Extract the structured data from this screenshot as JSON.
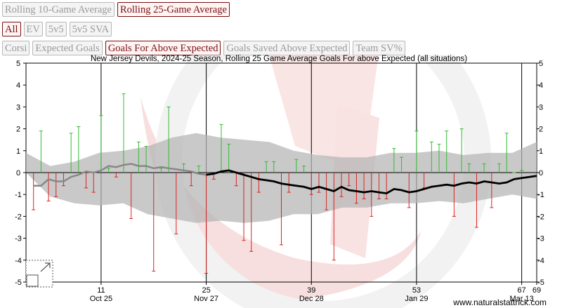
{
  "window_buttons": [
    {
      "label": "Rolling 10-Game Average",
      "active": false
    },
    {
      "label": "Rolling 25-Game Average",
      "active": true
    }
  ],
  "situation_buttons": [
    {
      "label": "All",
      "active": true
    },
    {
      "label": "EV",
      "active": false
    },
    {
      "label": "5v5",
      "active": false
    },
    {
      "label": "5v5 SVA",
      "active": false
    }
  ],
  "metric_buttons": [
    {
      "label": "Corsi",
      "active": false
    },
    {
      "label": "Expected Goals",
      "active": false
    },
    {
      "label": "Goals For Above Expected",
      "active": true
    },
    {
      "label": "Goals Saved Above Expected",
      "active": false
    },
    {
      "label": "Team SV%",
      "active": false
    }
  ],
  "watermark": "www.naturalstattrick.com",
  "colors": {
    "positive": "#33bb33",
    "negative": "#dd2222",
    "rolling_line": "#000000",
    "band": "#b4b4b4",
    "accent": "#7a1010"
  },
  "chart_data": {
    "type": "line",
    "title": "New Jersey Devils, 2024-25 Season, Rolling 25 Game Average Goals For above Expected (all situations)",
    "x_range": [
      1,
      69
    ],
    "ylim": [
      -5,
      5
    ],
    "y_ticks": [
      5,
      4,
      3,
      2,
      1,
      0,
      -1,
      -2,
      -3,
      -4,
      -5
    ],
    "x_ticks": [
      {
        "game": 11,
        "label": "11",
        "date": "Oct 25"
      },
      {
        "game": 25,
        "label": "25",
        "date": "Nov 27"
      },
      {
        "game": 39,
        "label": "39",
        "date": "Dec 28"
      },
      {
        "game": 53,
        "label": "53",
        "date": "Jan 29"
      },
      {
        "game": 67,
        "label": "67",
        "date": "Mar 13"
      },
      {
        "game": 69,
        "label": "69",
        "date": ""
      }
    ],
    "game_values": [
      -1.7,
      1.9,
      -1.3,
      -1.1,
      -0.6,
      1.8,
      2.1,
      -0.7,
      -0.9,
      2.6,
      0.2,
      -0.2,
      3.6,
      -2.1,
      1.4,
      1.2,
      -4.5,
      0.2,
      3.0,
      -2.8,
      0.4,
      -0.6,
      0.3,
      -4.6,
      -0.3,
      2.2,
      1.3,
      -0.6,
      -3.1,
      -3.6,
      -0.9,
      0.5,
      0.5,
      -3.3,
      -0.9,
      0.6,
      0.3,
      -1.0,
      -0.9,
      -1.7,
      -4.0,
      -1.1,
      -0.6,
      -1.4,
      -1.2,
      -2.0,
      -1.2,
      -1.2,
      1.1,
      0.7,
      -1.6,
      1.9,
      -0.7,
      1.4,
      1.3,
      1.9,
      -2.0,
      2.0,
      0.4,
      -2.5,
      0.4,
      -1.6,
      0.4,
      1.8,
      0.0,
      0.1
    ],
    "rolling_average": [
      -0.6,
      -0.6,
      -0.3,
      -0.4,
      -0.4,
      -0.2,
      -0.1,
      0.05,
      0.0,
      0.1,
      0.3,
      0.25,
      0.35,
      0.4,
      0.3,
      0.3,
      0.2,
      0.25,
      0.2,
      0.15,
      0.1,
      0.05,
      -0.05,
      -0.1,
      -0.05,
      0.05,
      0.1,
      0.0,
      -0.1,
      -0.2,
      -0.3,
      -0.35,
      -0.4,
      -0.5,
      -0.55,
      -0.6,
      -0.65,
      -0.75,
      -0.65,
      -0.75,
      -0.85,
      -0.65,
      -0.8,
      -0.85,
      -0.9,
      -0.85,
      -0.9,
      -0.95,
      -0.75,
      -0.8,
      -0.9,
      -0.85,
      -0.75,
      -0.65,
      -0.6,
      -0.55,
      -0.6,
      -0.5,
      -0.45,
      -0.5,
      -0.4,
      -0.45,
      -0.5,
      -0.45,
      -0.3,
      -0.25,
      -0.2,
      -0.15
    ],
    "rolling_start_game": 2,
    "band_upper": [
      0.9,
      0.3,
      0.5,
      0.9,
      1.0,
      1.2,
      1.6,
      1.8,
      1.6,
      1.5,
      1.4,
      1.0,
      0.8,
      0.7,
      0.7,
      0.9,
      0.9,
      1.0,
      0.8,
      0.9,
      0.9,
      1.4
    ],
    "band_lower": [
      0.0,
      -1.1,
      -1.4,
      -1.5,
      -1.4,
      -1.9,
      -2.1,
      -2.3,
      -2.2,
      -2.3,
      -2.2,
      -1.9,
      -1.9,
      -1.6,
      -1.6,
      -1.4,
      -1.4,
      -1.3,
      -1.4,
      -1.2,
      -1.0,
      -1.2
    ],
    "grid": false,
    "legend": "none"
  }
}
